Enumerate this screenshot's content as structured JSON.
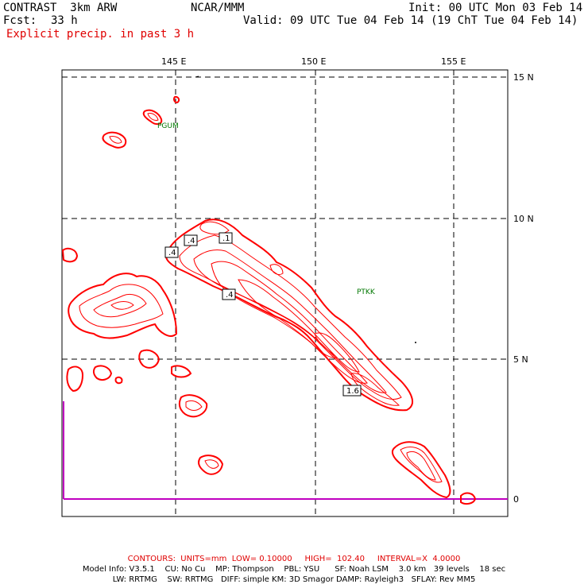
{
  "header": {
    "model": "CONTRAST  3km ARW",
    "org": "NCAR/MMM",
    "init": "Init: 00 UTC Mon 03 Feb 14",
    "fcst_label": "Fcst:",
    "fcst_value": "33 h",
    "valid": "Valid: 09 UTC Tue 04 Feb 14 (19 ChT Tue 04 Feb 14)",
    "field": "Explicit precip. in past 3 h"
  },
  "axes": {
    "lon_labels": [
      "145 E",
      "150 E",
      "155 E"
    ],
    "lat_labels": [
      "15 N",
      "10 N",
      "5 N",
      "0"
    ]
  },
  "stations": [
    {
      "id": "PGUM",
      "lon": 144.8,
      "lat": 13.5
    },
    {
      "id": "PTKK",
      "lon": 151.8,
      "lat": 7.5
    }
  ],
  "contour_labels": [
    ".4",
    ".4",
    ".1",
    ".4",
    "1.6"
  ],
  "footer": {
    "contours": "CONTOURS:  UNITS=mm  LOW= 0.10000     HIGH=  102.40     INTERVAL=X  4.0000",
    "model_info_1": "Model Info: V3.5.1    CU: No Cu    MP: Thompson    PBL: YSU      SF: Noah LSM    3.0 km   39 levels    18 sec",
    "model_info_2": "LW: RRTMG    SW: RRTMG   DIFF: simple KM: 3D Smagor DAMP: Rayleigh3   SFLAY: Rev MM5"
  },
  "colors": {
    "contour": "#ff0000",
    "grid": "#000000",
    "station": "#007700",
    "equator_line": "#c000c0"
  }
}
